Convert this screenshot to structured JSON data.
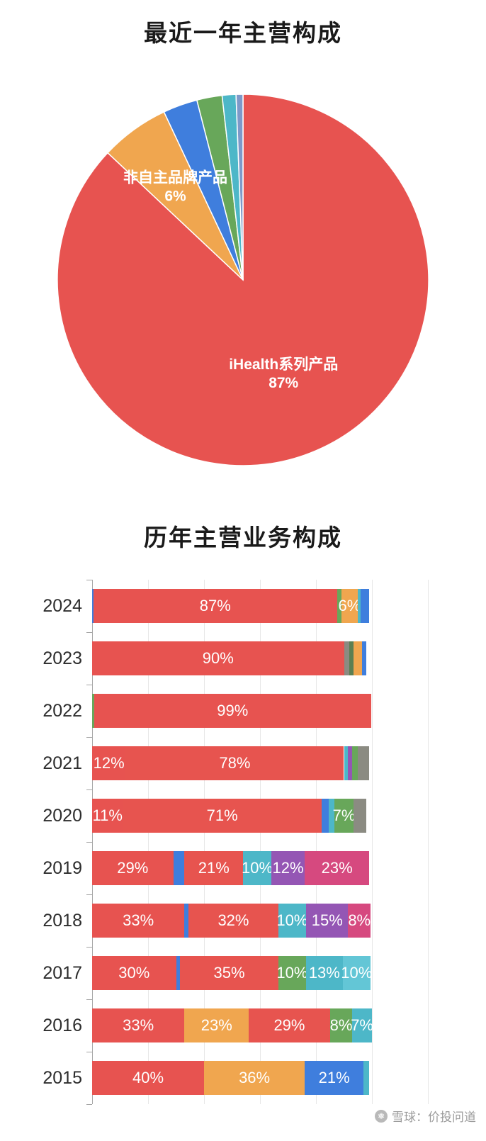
{
  "watermark": {
    "text": "雪球：价投问道",
    "logo_icon": "snowflake-circle"
  },
  "chart_data": [
    {
      "type": "pie",
      "title": "最近一年主营构成",
      "unit": "%",
      "slices": [
        {
          "label": "iHealth系列产品",
          "value": 87,
          "color": "#e75350"
        },
        {
          "label": "非自主品牌产品",
          "value": 6,
          "color": "#f0a64f"
        },
        {
          "label": "",
          "value": 3,
          "color": "#3f7edd"
        },
        {
          "label": "",
          "value": 2.2,
          "color": "#68a75a"
        },
        {
          "label": "",
          "value": 1.2,
          "color": "#4db7c8"
        },
        {
          "label": "",
          "value": 0.6,
          "color": "#7e99c9"
        }
      ]
    },
    {
      "type": "stacked_bar_horizontal",
      "title": "历年主营业务构成",
      "unit": "%",
      "x_axis": {
        "min": 0,
        "max": 120,
        "grid_step": 20
      },
      "label_threshold": 6,
      "rows": [
        {
          "year": "2024",
          "segments": [
            {
              "value": 0.5,
              "color": "#3f7edd"
            },
            {
              "value": 87,
              "color": "#e75350"
            },
            {
              "value": 1.5,
              "color": "#68a75a"
            },
            {
              "value": 6,
              "color": "#f0a64f"
            },
            {
              "value": 1,
              "color": "#4db7c8"
            },
            {
              "value": 3,
              "color": "#3f7edd"
            }
          ]
        },
        {
          "year": "2023",
          "segments": [
            {
              "value": 90,
              "color": "#e75350"
            },
            {
              "value": 2,
              "color": "#8b8b82"
            },
            {
              "value": 1.5,
              "color": "#5c7f52"
            },
            {
              "value": 3,
              "color": "#f0a64f"
            },
            {
              "value": 1.5,
              "color": "#3f7edd"
            }
          ]
        },
        {
          "year": "2022",
          "segments": [
            {
              "value": 0.7,
              "color": "#68a75a"
            },
            {
              "value": 99,
              "color": "#e75350"
            }
          ]
        },
        {
          "year": "2021",
          "segments": [
            {
              "value": 12,
              "color": "#e75350"
            },
            {
              "value": 78,
              "color": "#e7544f"
            },
            {
              "value": 1.5,
              "color": "#4db7c8"
            },
            {
              "value": 1.5,
              "color": "#9456b4"
            },
            {
              "value": 2,
              "color": "#68a75a"
            },
            {
              "value": 4,
              "color": "#8b8b82"
            }
          ]
        },
        {
          "year": "2020",
          "segments": [
            {
              "value": 11,
              "color": "#e75350"
            },
            {
              "value": 71,
              "color": "#e7544f"
            },
            {
              "value": 2.5,
              "color": "#3f7edd"
            },
            {
              "value": 2,
              "color": "#4db7c8"
            },
            {
              "value": 7,
              "color": "#68a75a"
            },
            {
              "value": 4.5,
              "color": "#8b8b82"
            }
          ]
        },
        {
          "year": "2019",
          "segments": [
            {
              "value": 29,
              "color": "#e75350"
            },
            {
              "value": 4,
              "color": "#3f7edd"
            },
            {
              "value": 21,
              "color": "#e7544f"
            },
            {
              "value": 10,
              "color": "#4db7c8"
            },
            {
              "value": 12,
              "color": "#9456b4"
            },
            {
              "value": 23,
              "color": "#d6497f"
            }
          ]
        },
        {
          "year": "2018",
          "segments": [
            {
              "value": 33,
              "color": "#e75350"
            },
            {
              "value": 1.5,
              "color": "#3f7edd"
            },
            {
              "value": 32,
              "color": "#e7544f"
            },
            {
              "value": 10,
              "color": "#4db7c8"
            },
            {
              "value": 15,
              "color": "#9456b4"
            },
            {
              "value": 8,
              "color": "#d6497f"
            }
          ]
        },
        {
          "year": "2017",
          "segments": [
            {
              "value": 30,
              "color": "#e75350"
            },
            {
              "value": 1.5,
              "color": "#3f7edd"
            },
            {
              "value": 35,
              "color": "#e7544f"
            },
            {
              "value": 10,
              "color": "#68a75a"
            },
            {
              "value": 13,
              "color": "#4db7c8"
            },
            {
              "value": 10,
              "color": "#63c6d6"
            }
          ]
        },
        {
          "year": "2016",
          "segments": [
            {
              "value": 33,
              "color": "#e75350"
            },
            {
              "value": 23,
              "color": "#f0a64f"
            },
            {
              "value": 29,
              "color": "#e7544f"
            },
            {
              "value": 8,
              "color": "#68a75a"
            },
            {
              "value": 7,
              "color": "#4db7c8"
            }
          ]
        },
        {
          "year": "2015",
          "segments": [
            {
              "value": 40,
              "color": "#e75350"
            },
            {
              "value": 36,
              "color": "#f0a64f"
            },
            {
              "value": 21,
              "color": "#3f7edd"
            },
            {
              "value": 2,
              "color": "#4db7c8"
            }
          ]
        }
      ]
    }
  ]
}
